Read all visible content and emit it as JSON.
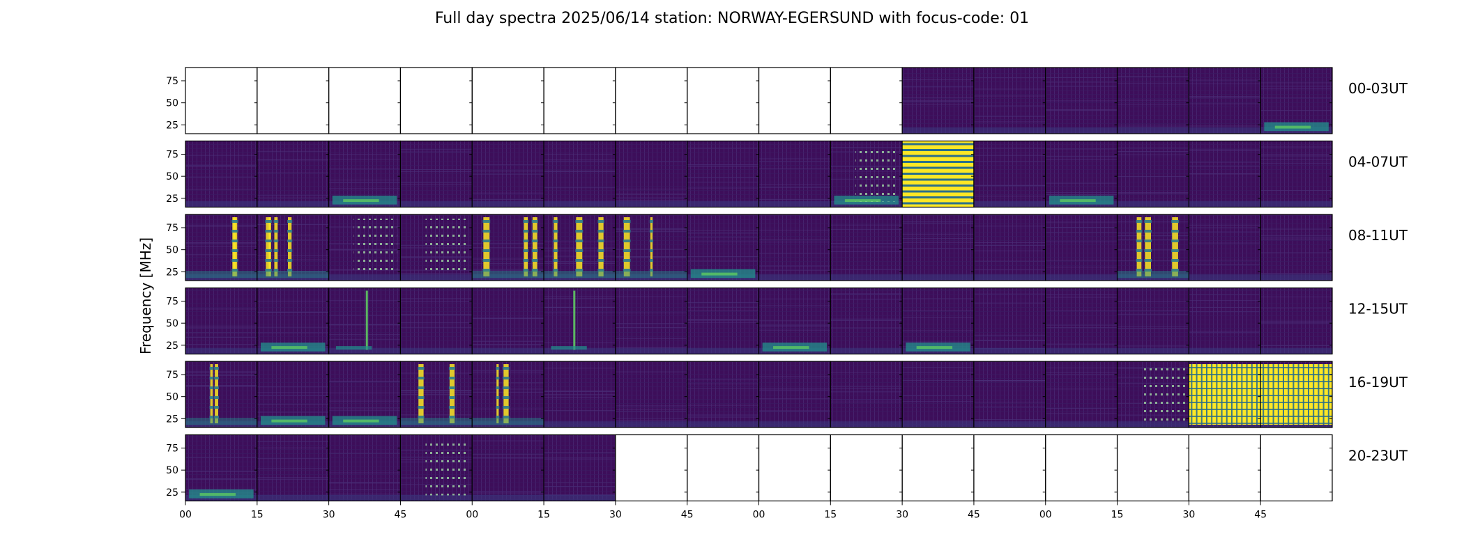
{
  "chart_data": {
    "type": "heatmap",
    "title": "Full day spectra 2025/06/14 station: NORWAY-EGERSUND with focus-code: 01",
    "ylabel": "Frequency [MHz]",
    "xlabel": "",
    "y_ticks": [
      "75",
      "50",
      "25"
    ],
    "y_tick_values": [
      75,
      50,
      25
    ],
    "ylim": [
      15,
      90
    ],
    "x_ticks": [
      "00",
      "15",
      "30",
      "45",
      "00",
      "15",
      "30",
      "45",
      "00",
      "15",
      "30",
      "45",
      "00",
      "15",
      "30",
      "45"
    ],
    "panels_per_row": 16,
    "minutes_per_panel": 15,
    "colormap": "viridis",
    "rows": [
      {
        "label": "00-03UT",
        "panels": [
          "none",
          "none",
          "none",
          "none",
          "none",
          "none",
          "none",
          "none",
          "none",
          "none",
          "quiet",
          "quiet",
          "quiet",
          "quiet",
          "quiet",
          "low-band"
        ]
      },
      {
        "label": "04-07UT",
        "panels": [
          "quiet",
          "quiet",
          "low-band",
          "quiet",
          "quiet",
          "quiet",
          "quiet",
          "quiet",
          "quiet",
          "dotted-low",
          "saturated",
          "quiet",
          "low-band",
          "quiet",
          "quiet",
          "quiet"
        ]
      },
      {
        "label": "08-11UT",
        "panels": [
          "bursts",
          "bursts",
          "dotted",
          "dotted",
          "bursts",
          "bursts",
          "bursts",
          "low-band",
          "quiet",
          "quiet",
          "quiet",
          "quiet",
          "quiet",
          "bursts",
          "quiet",
          "quiet"
        ]
      },
      {
        "label": "12-15UT",
        "panels": [
          "quiet",
          "low-band",
          "spike",
          "quiet",
          "quiet",
          "spike",
          "quiet",
          "quiet",
          "low-band",
          "quiet",
          "low-band",
          "quiet",
          "quiet",
          "quiet",
          "quiet",
          "quiet"
        ]
      },
      {
        "label": "16-19UT",
        "panels": [
          "bursts",
          "low-band",
          "low-band",
          "bursts",
          "bursts",
          "quiet",
          "quiet",
          "quiet",
          "quiet",
          "quiet",
          "quiet",
          "quiet",
          "quiet",
          "dotted",
          "saturated-bars",
          "saturated-bars"
        ]
      },
      {
        "label": "20-23UT",
        "panels": [
          "low-band",
          "quiet",
          "quiet",
          "dotted",
          "quiet",
          "quiet",
          "none",
          "none",
          "none",
          "none",
          "none",
          "none",
          "none",
          "none",
          "none",
          "none"
        ]
      }
    ]
  },
  "colors": {
    "background": "#440154",
    "dark": "#3b0f52",
    "mid": "#3b528b",
    "teal": "#21918c",
    "green": "#5ec962",
    "yellow": "#fde725",
    "axis": "#000000"
  }
}
